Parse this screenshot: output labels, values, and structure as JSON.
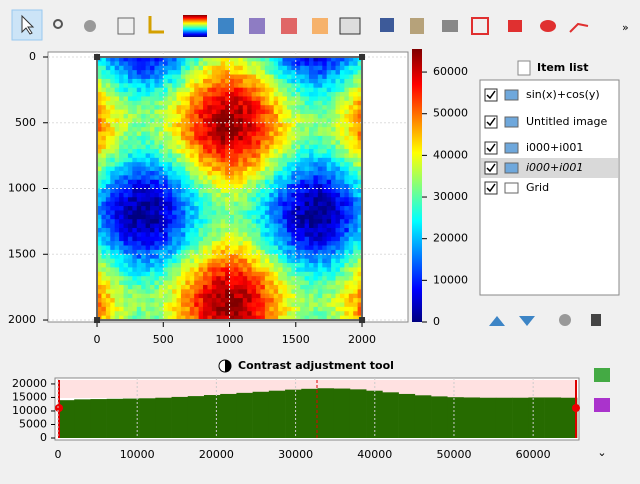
{
  "image_plot": {
    "xlim": [
      -370,
      2347
    ],
    "ylim": [
      -38,
      2015
    ],
    "xticks": [
      0,
      500,
      1000,
      1500,
      2000
    ],
    "yticks": [
      0,
      500,
      1000,
      1500,
      2000
    ]
  },
  "colorbar": {
    "lim": [
      0,
      65535
    ],
    "ticks": [
      0,
      10000,
      20000,
      30000,
      40000,
      50000,
      60000
    ]
  },
  "item_list": {
    "title": "Item list",
    "items": [
      {
        "label": "sin(x)+cos(y)"
      },
      {
        "label": "Untitled image"
      },
      {
        "label": "i000+i001"
      },
      {
        "label": "i000+i001"
      },
      {
        "label": "Grid"
      }
    ]
  },
  "contrast": {
    "title": "Contrast adjustment tool",
    "histogram": {
      "type": "histogram",
      "color": "#266b00",
      "xlim": [
        0,
        65536
      ],
      "ylim": [
        0,
        22200
      ],
      "xticks": [
        0,
        10000,
        20000,
        30000,
        40000,
        50000,
        60000
      ],
      "yticks": [
        0,
        5000,
        10000,
        15000,
        20000
      ],
      "bins": [
        0,
        2048,
        4096,
        6144,
        8192,
        10240,
        12288,
        14336,
        16384,
        18432,
        20480,
        22528,
        24576,
        26624,
        28672,
        30720,
        32768,
        34816,
        36864,
        38912,
        40960,
        43008,
        45056,
        47104,
        49152,
        51200,
        53248,
        55296,
        57344,
        59392,
        61440,
        63488,
        65536
      ],
      "values": [
        14000,
        14300,
        14400,
        14500,
        14600,
        14700,
        14900,
        15200,
        15500,
        15900,
        16300,
        16700,
        17100,
        17500,
        17900,
        18200,
        18400,
        18300,
        18000,
        17500,
        16900,
        16300,
        15800,
        15400,
        15100,
        15000,
        14900,
        14900,
        14900,
        15000,
        15000,
        14900
      ]
    }
  }
}
